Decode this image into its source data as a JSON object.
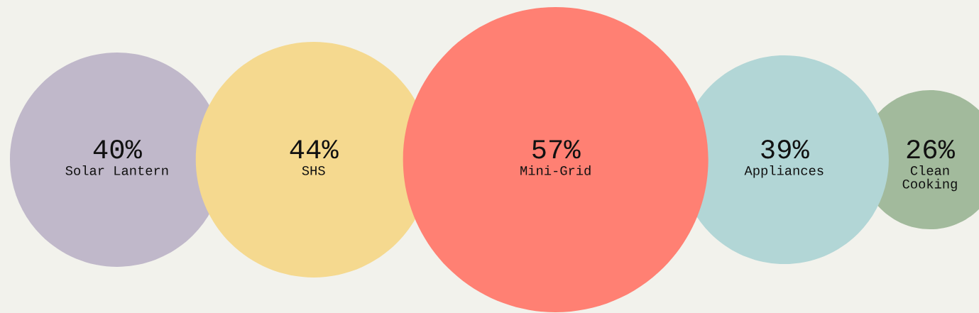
{
  "chart_data": {
    "type": "other",
    "categories": [
      "Solar Lantern",
      "SHS",
      "Mini-Grid",
      "Appliances",
      "Clean\nCooking"
    ],
    "values": [
      40,
      44,
      57,
      39,
      26
    ],
    "value_labels": [
      "40%",
      "44%",
      "57%",
      "39%",
      "26%"
    ],
    "colors": [
      "#c0b8ca",
      "#f5d98f",
      "#ff8073",
      "#b2d6d6",
      "#a2ba9c"
    ]
  }
}
